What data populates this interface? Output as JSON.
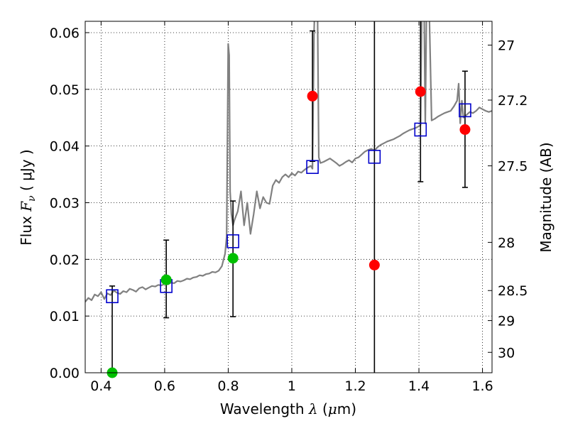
{
  "chart_data": {
    "type": "scatter",
    "xlabel": {
      "prefix": "Wavelength",
      "symbol": "λ",
      "unit_open": "(",
      "unit_mu": "μ",
      "unit_rest": "m)"
    },
    "ylabel": {
      "prefix": "Flux",
      "symbol": "F",
      "subscript": "ν",
      "unit": "( μJy )"
    },
    "y2label": "Magnitude (AB)",
    "xlim": [
      0.35,
      1.63
    ],
    "ylim": [
      0.0,
      0.062
    ],
    "grid": true,
    "x_ticks": [
      {
        "value": 0.4,
        "label": "0.4"
      },
      {
        "value": 0.6,
        "label": "0.6"
      },
      {
        "value": 0.8,
        "label": "0.8"
      },
      {
        "value": 1.0,
        "label": "1"
      },
      {
        "value": 1.2,
        "label": "1.2"
      },
      {
        "value": 1.4,
        "label": "1.4"
      },
      {
        "value": 1.6,
        "label": "1.6"
      }
    ],
    "y_ticks": [
      {
        "value": 0.0,
        "label": "0.00"
      },
      {
        "value": 0.01,
        "label": "0.01"
      },
      {
        "value": 0.02,
        "label": "0.02"
      },
      {
        "value": 0.03,
        "label": "0.03"
      },
      {
        "value": 0.04,
        "label": "0.04"
      },
      {
        "value": 0.05,
        "label": "0.05"
      },
      {
        "value": 0.06,
        "label": "0.06"
      }
    ],
    "y2_ticks": [
      {
        "label": "27",
        "flux": 0.0578
      },
      {
        "label": "27.2",
        "flux": 0.0481
      },
      {
        "label": "27.5",
        "flux": 0.0365
      },
      {
        "label": "28",
        "flux": 0.023
      },
      {
        "label": "28.5",
        "flux": 0.0145
      },
      {
        "label": "29",
        "flux": 0.0092
      },
      {
        "label": "30",
        "flux": 0.0036
      }
    ],
    "series": [
      {
        "kind": "spectrum",
        "color": "#808080",
        "x": [
          0.35,
          0.36,
          0.37,
          0.38,
          0.39,
          0.4,
          0.41,
          0.42,
          0.43,
          0.44,
          0.45,
          0.46,
          0.47,
          0.48,
          0.49,
          0.5,
          0.51,
          0.52,
          0.53,
          0.54,
          0.55,
          0.56,
          0.57,
          0.58,
          0.59,
          0.6,
          0.61,
          0.62,
          0.63,
          0.64,
          0.65,
          0.66,
          0.67,
          0.68,
          0.69,
          0.7,
          0.71,
          0.72,
          0.73,
          0.74,
          0.75,
          0.76,
          0.77,
          0.78,
          0.79,
          0.795,
          0.8,
          0.803,
          0.806,
          0.81,
          0.815,
          0.82,
          0.83,
          0.84,
          0.85,
          0.86,
          0.87,
          0.88,
          0.89,
          0.9,
          0.91,
          0.92,
          0.93,
          0.94,
          0.95,
          0.96,
          0.97,
          0.98,
          0.99,
          1.0,
          1.01,
          1.02,
          1.03,
          1.04,
          1.05,
          1.06,
          1.065,
          1.07,
          1.075,
          1.08,
          1.085,
          1.09,
          1.1,
          1.11,
          1.12,
          1.13,
          1.14,
          1.15,
          1.16,
          1.17,
          1.18,
          1.19,
          1.2,
          1.21,
          1.22,
          1.23,
          1.24,
          1.25,
          1.26,
          1.27,
          1.28,
          1.29,
          1.3,
          1.31,
          1.32,
          1.33,
          1.34,
          1.35,
          1.36,
          1.37,
          1.38,
          1.39,
          1.4,
          1.405,
          1.41,
          1.415,
          1.42,
          1.425,
          1.43,
          1.44,
          1.45,
          1.46,
          1.47,
          1.48,
          1.49,
          1.5,
          1.51,
          1.52,
          1.525,
          1.53,
          1.535,
          1.54,
          1.55,
          1.56,
          1.57,
          1.58,
          1.59,
          1.6,
          1.61,
          1.62,
          1.63
        ],
        "y": [
          0.0125,
          0.0132,
          0.0128,
          0.0138,
          0.0135,
          0.0142,
          0.013,
          0.014,
          0.0137,
          0.0145,
          0.0141,
          0.0139,
          0.0144,
          0.0142,
          0.0148,
          0.0146,
          0.0143,
          0.0149,
          0.0151,
          0.0147,
          0.015,
          0.0153,
          0.0152,
          0.0155,
          0.0154,
          0.0157,
          0.0156,
          0.0159,
          0.0158,
          0.0162,
          0.0161,
          0.0163,
          0.0166,
          0.0165,
          0.0168,
          0.0169,
          0.0172,
          0.0171,
          0.0174,
          0.0175,
          0.0178,
          0.0177,
          0.018,
          0.0188,
          0.021,
          0.024,
          0.058,
          0.056,
          0.032,
          0.028,
          0.026,
          0.027,
          0.0285,
          0.032,
          0.026,
          0.03,
          0.0245,
          0.028,
          0.032,
          0.029,
          0.031,
          0.03,
          0.0298,
          0.033,
          0.034,
          0.0335,
          0.0345,
          0.035,
          0.0345,
          0.0352,
          0.0348,
          0.0355,
          0.0353,
          0.0358,
          0.0362,
          0.0365,
          0.036,
          0.06,
          0.07,
          0.07,
          0.038,
          0.037,
          0.0372,
          0.0375,
          0.0378,
          0.0374,
          0.037,
          0.0365,
          0.0368,
          0.0372,
          0.0375,
          0.0371,
          0.0378,
          0.038,
          0.0385,
          0.039,
          0.0393,
          0.0395,
          0.0392,
          0.0398,
          0.0402,
          0.0405,
          0.0408,
          0.041,
          0.0412,
          0.0415,
          0.0418,
          0.0422,
          0.0425,
          0.0428,
          0.043,
          0.0432,
          0.0435,
          0.0437,
          0.07,
          0.07,
          0.044,
          0.07,
          0.07,
          0.0445,
          0.0448,
          0.0452,
          0.0455,
          0.0458,
          0.046,
          0.0462,
          0.047,
          0.048,
          0.051,
          0.044,
          0.048,
          0.045,
          0.0455,
          0.046,
          0.0458,
          0.0462,
          0.0468,
          0.0465,
          0.0462,
          0.046,
          0.0462
        ]
      },
      {
        "kind": "model-photometry",
        "marker": "open-square",
        "color": "#0000cc",
        "x": [
          0.435,
          0.605,
          0.815,
          1.065,
          1.26,
          1.405,
          1.545
        ],
        "y": [
          0.0135,
          0.0153,
          0.0232,
          0.0363,
          0.0381,
          0.0429,
          0.0463
        ]
      },
      {
        "kind": "observed-flux",
        "marker": "filled-circle",
        "colors": [
          "#00c000",
          "#00c000",
          "#00c000",
          "#ff0000",
          "#ff0000",
          "#ff0000",
          "#ff0000"
        ],
        "x": [
          0.435,
          0.605,
          0.815,
          1.065,
          1.26,
          1.405,
          1.545
        ],
        "y": [
          0.0,
          0.0164,
          0.0202,
          0.0488,
          0.019,
          0.0496,
          0.0429
        ],
        "err_low": [
          0.0,
          0.0097,
          0.0099,
          0.0373,
          0.0,
          0.0337,
          0.0327
        ],
        "err_high": [
          0.0153,
          0.0234,
          0.0303,
          0.0603,
          0.062,
          0.062,
          0.0532
        ]
      }
    ]
  }
}
